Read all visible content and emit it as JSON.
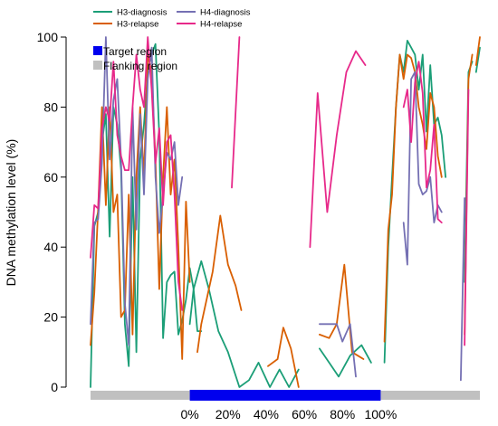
{
  "chart_data": {
    "type": "line",
    "ylabel": "DNA methylation level (%)",
    "ylim": [
      0,
      100
    ],
    "yticks": [
      0,
      20,
      40,
      60,
      80,
      100
    ],
    "xlim": [
      -0.52,
      1.52
    ],
    "xticks": [
      {
        "value": 0.0,
        "label": "0%"
      },
      {
        "value": 0.2,
        "label": "20%"
      },
      {
        "value": 0.4,
        "label": "40%"
      },
      {
        "value": 0.6,
        "label": "60%"
      },
      {
        "value": 0.8,
        "label": "80%"
      },
      {
        "value": 1.0,
        "label": "100%"
      }
    ],
    "regions": [
      {
        "name": "Flanking region",
        "start": -0.52,
        "end": 1.52,
        "color": "#c0c0c0"
      },
      {
        "name": "Target region",
        "start": 0.0,
        "end": 1.0,
        "color": "#0000ee"
      }
    ],
    "legend_series": [
      "H3-diagnosis",
      "H3-relapse",
      "H4-diagnosis",
      "H4-relapse"
    ],
    "legend_regions": [
      "Target region",
      "Flanking region"
    ],
    "series": [
      {
        "name": "H3-diagnosis",
        "color": "#1b9e77",
        "segments": [
          [
            [
              -0.52,
              0
            ],
            [
              -0.5,
              46
            ],
            [
              -0.48,
              50
            ],
            [
              -0.46,
              70
            ],
            [
              -0.44,
              78
            ],
            [
              -0.42,
              43
            ],
            [
              -0.4,
              80
            ],
            [
              -0.38,
              75
            ],
            [
              -0.36,
              62
            ],
            [
              -0.34,
              18
            ],
            [
              -0.32,
              6
            ],
            [
              -0.3,
              60
            ],
            [
              -0.28,
              10
            ],
            [
              -0.26,
              65
            ],
            [
              -0.24,
              75
            ],
            [
              -0.22,
              90
            ],
            [
              -0.2,
              95
            ],
            [
              -0.18,
              98
            ],
            [
              -0.16,
              72
            ],
            [
              -0.14,
              14
            ],
            [
              -0.12,
              30
            ],
            [
              -0.1,
              32
            ],
            [
              -0.08,
              33
            ],
            [
              -0.06,
              15
            ],
            [
              -0.04,
              19
            ],
            [
              -0.02,
              25
            ],
            [
              0.0,
              34
            ],
            [
              0.02,
              28
            ],
            [
              0.04,
              16
            ],
            [
              0.06,
              16
            ]
          ],
          [
            [
              0.0,
              18
            ],
            [
              0.02,
              28
            ],
            [
              0.06,
              36
            ],
            [
              0.1,
              28
            ],
            [
              0.15,
              16
            ],
            [
              0.2,
              10
            ],
            [
              0.26,
              0
            ],
            [
              0.31,
              2
            ],
            [
              0.36,
              7
            ],
            [
              0.42,
              0
            ],
            [
              0.47,
              5
            ],
            [
              0.52,
              0
            ],
            [
              0.57,
              5
            ]
          ],
          [
            [
              0.68,
              11
            ],
            [
              0.73,
              7
            ],
            [
              0.78,
              3
            ],
            [
              0.84,
              9
            ],
            [
              0.9,
              12
            ],
            [
              0.95,
              7
            ]
          ],
          [
            [
              1.02,
              7
            ],
            [
              1.04,
              40
            ],
            [
              1.06,
              60
            ],
            [
              1.08,
              80
            ],
            [
              1.1,
              95
            ],
            [
              1.12,
              90
            ],
            [
              1.14,
              99
            ],
            [
              1.16,
              97
            ],
            [
              1.18,
              95
            ],
            [
              1.2,
              85
            ],
            [
              1.22,
              95
            ],
            [
              1.24,
              73
            ],
            [
              1.26,
              92
            ],
            [
              1.28,
              75
            ],
            [
              1.3,
              77
            ],
            [
              1.32,
              72
            ],
            [
              1.34,
              60
            ]
          ],
          [
            [
              1.44,
              30
            ],
            [
              1.46,
              90
            ],
            [
              1.48,
              93
            ]
          ],
          [
            [
              1.5,
              90
            ],
            [
              1.52,
              97
            ]
          ]
        ]
      },
      {
        "name": "H3-relapse",
        "color": "#d95f02",
        "segments": [
          [
            [
              -0.52,
              12
            ],
            [
              -0.5,
              27
            ],
            [
              -0.48,
              51
            ],
            [
              -0.46,
              80
            ],
            [
              -0.44,
              52
            ],
            [
              -0.42,
              80
            ],
            [
              -0.4,
              50
            ],
            [
              -0.38,
              55
            ],
            [
              -0.36,
              20
            ],
            [
              -0.34,
              22
            ],
            [
              -0.32,
              55
            ],
            [
              -0.3,
              15
            ],
            [
              -0.28,
              60
            ],
            [
              -0.26,
              80
            ],
            [
              -0.24,
              60
            ],
            [
              -0.22,
              95
            ],
            [
              -0.2,
              90
            ],
            [
              -0.18,
              65
            ],
            [
              -0.16,
              28
            ],
            [
              -0.14,
              60
            ],
            [
              -0.12,
              80
            ],
            [
              -0.1,
              55
            ],
            [
              -0.08,
              65
            ],
            [
              -0.06,
              40
            ],
            [
              -0.04,
              8
            ],
            [
              -0.02,
              53
            ],
            [
              0.0,
              30
            ]
          ],
          [
            [
              0.04,
              10
            ],
            [
              0.06,
              18
            ],
            [
              0.08,
              23
            ],
            [
              0.12,
              33
            ],
            [
              0.16,
              49
            ],
            [
              0.2,
              35
            ],
            [
              0.24,
              29
            ],
            [
              0.27,
              22
            ]
          ],
          [
            [
              0.41,
              6
            ],
            [
              0.46,
              8
            ],
            [
              0.49,
              17
            ],
            [
              0.53,
              11
            ],
            [
              0.57,
              0
            ]
          ],
          [
            [
              0.68,
              15
            ],
            [
              0.73,
              14
            ],
            [
              0.77,
              18
            ],
            [
              0.81,
              35
            ],
            [
              0.85,
              10
            ],
            [
              0.88,
              9
            ],
            [
              0.91,
              8
            ]
          ],
          [
            [
              1.02,
              13
            ],
            [
              1.04,
              45
            ],
            [
              1.06,
              55
            ],
            [
              1.08,
              80
            ],
            [
              1.1,
              95
            ],
            [
              1.12,
              88
            ],
            [
              1.14,
              95
            ],
            [
              1.16,
              94
            ],
            [
              1.18,
              90
            ],
            [
              1.2,
              80
            ],
            [
              1.22,
              75
            ],
            [
              1.24,
              68
            ],
            [
              1.26,
              84
            ],
            [
              1.28,
              80
            ],
            [
              1.3,
              66
            ],
            [
              1.32,
              60
            ]
          ],
          [
            [
              1.44,
              15
            ],
            [
              1.46,
              88
            ],
            [
              1.48,
              95
            ]
          ],
          [
            [
              1.5,
              92
            ],
            [
              1.52,
              100
            ]
          ]
        ]
      },
      {
        "name": "H4-diagnosis",
        "color": "#7570b3",
        "segments": [
          [
            [
              -0.52,
              18
            ],
            [
              -0.5,
              47
            ],
            [
              -0.48,
              48
            ],
            [
              -0.46,
              64
            ],
            [
              -0.44,
              100
            ],
            [
              -0.42,
              65
            ],
            [
              -0.4,
              82
            ],
            [
              -0.38,
              88
            ],
            [
              -0.36,
              65
            ],
            [
              -0.34,
              24
            ],
            [
              -0.32,
              12
            ],
            [
              -0.3,
              80
            ],
            [
              -0.28,
              45
            ],
            [
              -0.26,
              78
            ],
            [
              -0.24,
              55
            ],
            [
              -0.22,
              88
            ],
            [
              -0.2,
              97
            ],
            [
              -0.18,
              60
            ],
            [
              -0.16,
              44
            ],
            [
              -0.14,
              55
            ],
            [
              -0.12,
              67
            ],
            [
              -0.1,
              65
            ],
            [
              -0.08,
              70
            ],
            [
              -0.06,
              52
            ],
            [
              -0.04,
              60
            ]
          ],
          [
            [
              0.68,
              18
            ],
            [
              0.73,
              18
            ],
            [
              0.77,
              18
            ],
            [
              0.8,
              13
            ],
            [
              0.84,
              18
            ],
            [
              0.87,
              3
            ]
          ],
          [
            [
              1.12,
              47
            ],
            [
              1.14,
              35
            ],
            [
              1.16,
              88
            ],
            [
              1.18,
              90
            ],
            [
              1.2,
              58
            ],
            [
              1.22,
              55
            ],
            [
              1.24,
              56
            ],
            [
              1.26,
              60
            ],
            [
              1.28,
              47
            ],
            [
              1.3,
              52
            ],
            [
              1.32,
              50
            ]
          ],
          [
            [
              1.42,
              2
            ],
            [
              1.44,
              54
            ]
          ]
        ]
      },
      {
        "name": "H4-relapse",
        "color": "#e7298a",
        "segments": [
          [
            [
              -0.52,
              37
            ],
            [
              -0.5,
              52
            ],
            [
              -0.48,
              51
            ],
            [
              -0.46,
              74
            ],
            [
              -0.44,
              80
            ],
            [
              -0.42,
              76
            ],
            [
              -0.4,
              93
            ],
            [
              -0.38,
              72
            ],
            [
              -0.36,
              66
            ],
            [
              -0.34,
              62
            ],
            [
              -0.32,
              62
            ],
            [
              -0.3,
              80
            ],
            [
              -0.28,
              95
            ],
            [
              -0.26,
              85
            ],
            [
              -0.24,
              80
            ],
            [
              -0.22,
              100
            ],
            [
              -0.2,
              85
            ],
            [
              -0.18,
              64
            ],
            [
              -0.16,
              74
            ],
            [
              -0.14,
              52
            ],
            [
              -0.12,
              70
            ],
            [
              -0.1,
              72
            ],
            [
              -0.08,
              55
            ],
            [
              -0.06,
              30
            ],
            [
              -0.04,
              22
            ]
          ],
          [
            [
              0.22,
              57
            ],
            [
              0.26,
              100
            ]
          ],
          [
            [
              0.63,
              40
            ],
            [
              0.67,
              84
            ],
            [
              0.72,
              50
            ],
            [
              0.77,
              72
            ],
            [
              0.82,
              90
            ],
            [
              0.87,
              96
            ],
            [
              0.92,
              92
            ]
          ],
          [
            [
              1.12,
              80
            ],
            [
              1.14,
              85
            ],
            [
              1.16,
              70
            ],
            [
              1.18,
              87
            ],
            [
              1.2,
              93
            ],
            [
              1.22,
              84
            ],
            [
              1.24,
              57
            ],
            [
              1.26,
              62
            ],
            [
              1.28,
              75
            ],
            [
              1.3,
              48
            ],
            [
              1.32,
              47
            ]
          ],
          [
            [
              1.44,
              12
            ],
            [
              1.46,
              85
            ]
          ]
        ]
      }
    ]
  }
}
